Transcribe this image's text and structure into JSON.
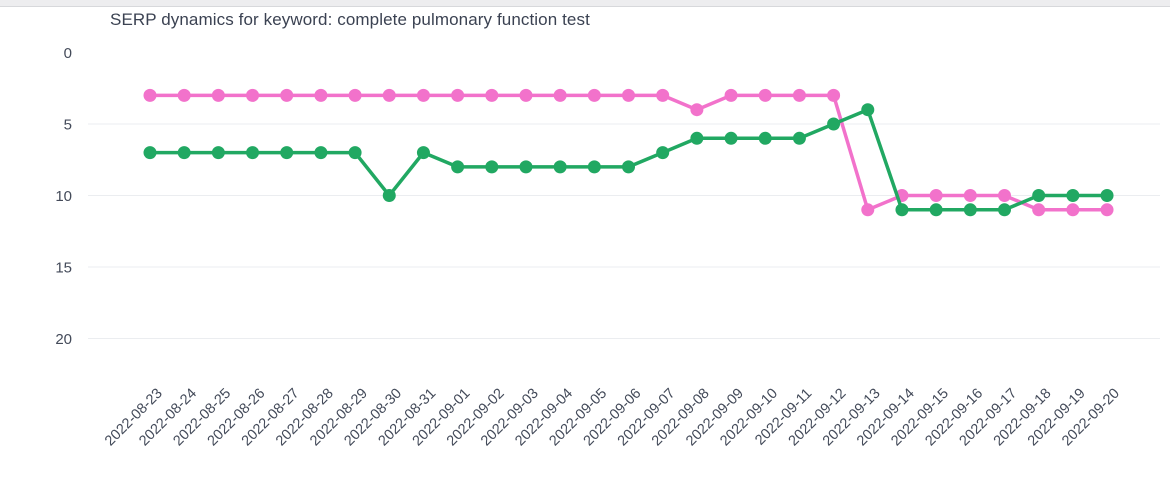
{
  "header": {
    "title": "SERP dynamics for keyword: complete pulmonary function test"
  },
  "chart_data": {
    "type": "line",
    "title": "SERP dynamics for keyword: complete pulmonary function test",
    "xlabel": "",
    "ylabel": "",
    "x": [
      "2022-08-23",
      "2022-08-24",
      "2022-08-25",
      "2022-08-26",
      "2022-08-27",
      "2022-08-28",
      "2022-08-29",
      "2022-08-30",
      "2022-08-31",
      "2022-09-01",
      "2022-09-02",
      "2022-09-03",
      "2022-09-04",
      "2022-09-05",
      "2022-09-06",
      "2022-09-07",
      "2022-09-08",
      "2022-09-09",
      "2022-09-10",
      "2022-09-11",
      "2022-09-12",
      "2022-09-13",
      "2022-09-14",
      "2022-09-15",
      "2022-09-16",
      "2022-09-17",
      "2022-09-18",
      "2022-09-19",
      "2022-09-20"
    ],
    "series": [
      {
        "id": "pink",
        "color": "#f272cb",
        "values": [
          3,
          3,
          3,
          3,
          3,
          3,
          3,
          3,
          3,
          3,
          3,
          3,
          3,
          3,
          3,
          3,
          4,
          3,
          3,
          3,
          3,
          11,
          10,
          10,
          10,
          10,
          11,
          11,
          11
        ]
      },
      {
        "id": "green",
        "color": "#21a862",
        "values": [
          7,
          7,
          7,
          7,
          7,
          7,
          7,
          10,
          7,
          8,
          8,
          8,
          8,
          8,
          8,
          7,
          6,
          6,
          6,
          6,
          5,
          4,
          11,
          11,
          11,
          11,
          10,
          10,
          10
        ]
      }
    ],
    "y_axis": {
      "ticks": [
        0,
        5,
        10,
        15,
        20
      ],
      "gridlines_at": [
        5,
        10,
        15,
        20
      ],
      "range": [
        0,
        20
      ],
      "inverted": true
    },
    "legend": "none",
    "grid": "horizontal",
    "style": {
      "grid_color": "#ebedf0",
      "axis_label_color": "#434a59",
      "title_color": "#3b4252"
    }
  }
}
